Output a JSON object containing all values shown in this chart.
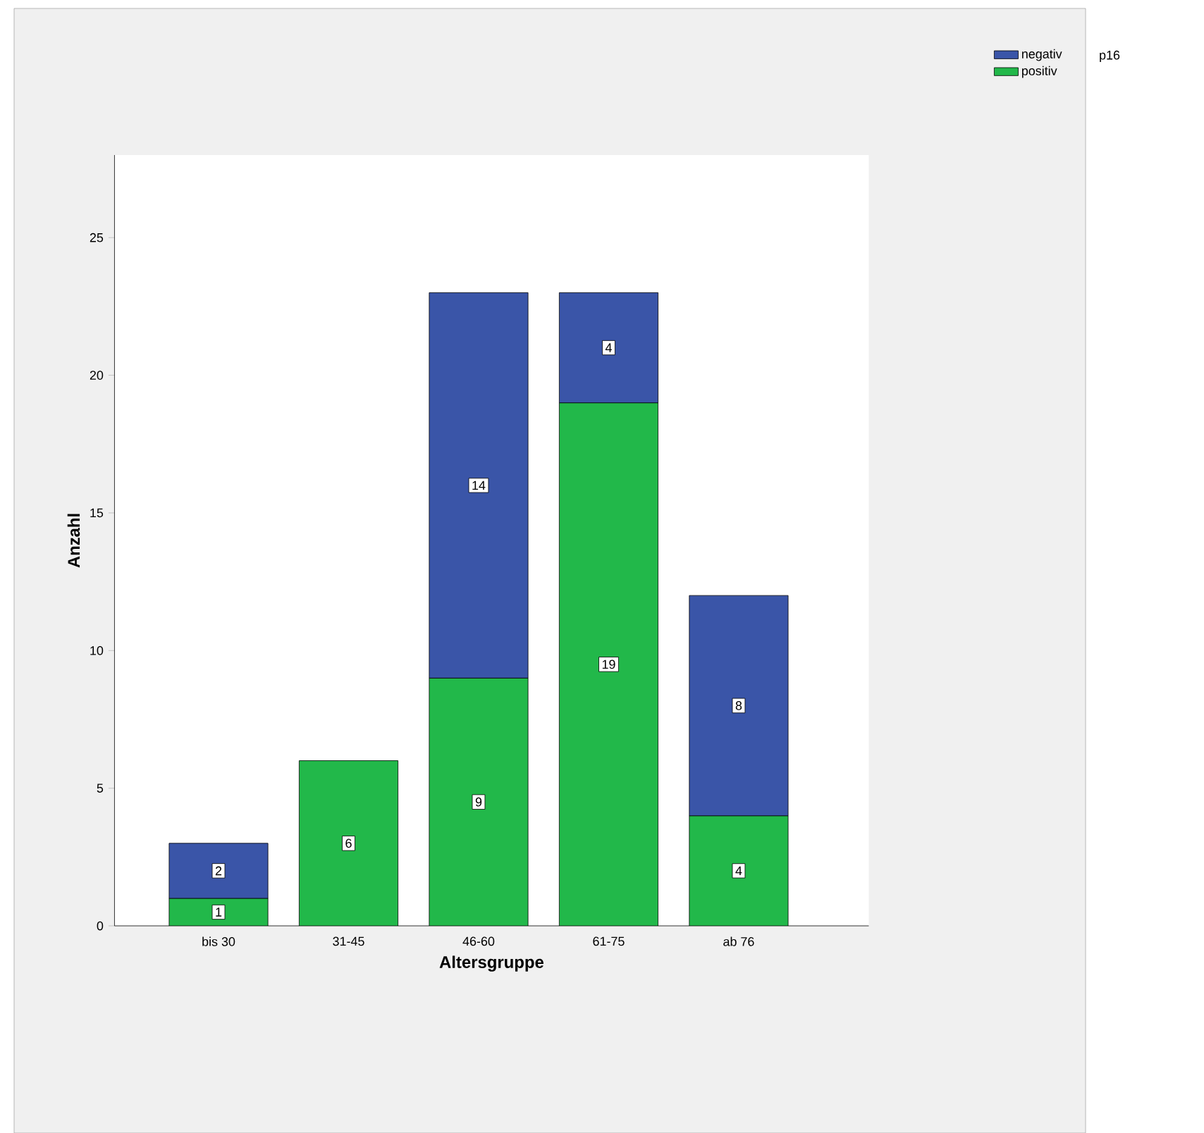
{
  "chart_data": {
    "type": "bar",
    "stacked": true,
    "xlabel": "Altersgruppe",
    "ylabel": "Anzahl",
    "legend_title": "p16",
    "categories": [
      "bis 30",
      "31-45",
      "46-60",
      "61-75",
      "ab 76"
    ],
    "series": [
      {
        "name": "positiv",
        "color": "#22b84a",
        "values": [
          1,
          6,
          9,
          19,
          4
        ]
      },
      {
        "name": "negativ",
        "color": "#3a55a8",
        "values": [
          2,
          null,
          14,
          4,
          8
        ]
      }
    ],
    "ylim": [
      0,
      28
    ],
    "yticks": [
      0,
      5,
      10,
      15,
      20,
      25
    ],
    "data_labels": true,
    "legend": "top right",
    "grid": false
  }
}
